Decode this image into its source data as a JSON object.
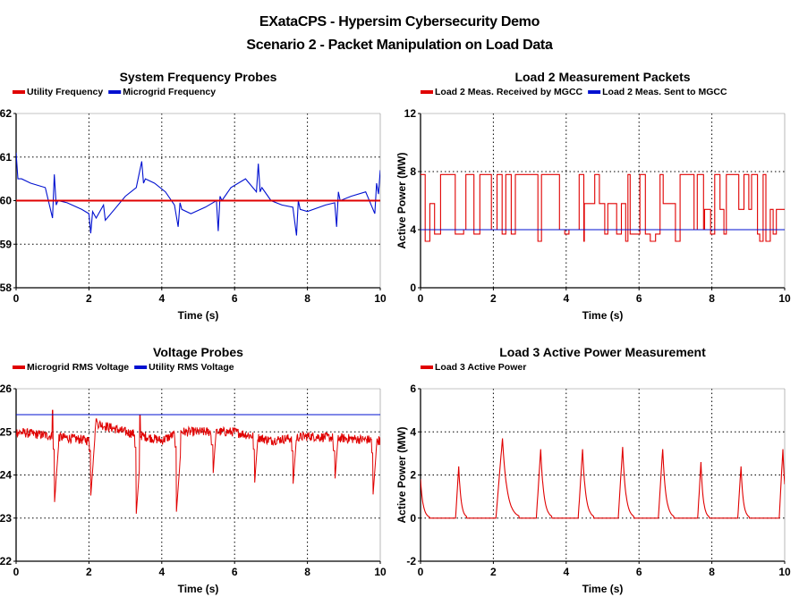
{
  "page": {
    "title": "EXataCPS - Hypersim Cybersecurity Demo",
    "subtitle": "Scenario 2 - Packet Manipulation on Load Data"
  },
  "chart_data": [
    {
      "id": "freq",
      "type": "line",
      "title": "System Frequency Probes",
      "xlabel": "Time (s)",
      "ylabel": "",
      "xlim": [
        0,
        10
      ],
      "ylim": [
        58,
        62
      ],
      "xticks": [
        0,
        2,
        4,
        6,
        8,
        10
      ],
      "yticks": [
        58,
        59,
        60,
        61,
        62
      ],
      "grid": true,
      "legend_position": "top-left",
      "series": [
        {
          "name": "Utility Frequency",
          "color": "#e00000",
          "kind": "flat",
          "x": [
            0,
            10
          ],
          "y": [
            60.0,
            60.0
          ]
        },
        {
          "name": "Microgrid Frequency",
          "color": "#0010d0",
          "kind": "path",
          "x": [
            0,
            0.05,
            0.15,
            0.4,
            0.8,
            1.0,
            1.05,
            1.1,
            1.15,
            1.4,
            1.8,
            2.0,
            2.05,
            2.1,
            2.2,
            2.4,
            2.45,
            2.5,
            2.7,
            3.0,
            3.3,
            3.45,
            3.5,
            3.55,
            3.8,
            4.1,
            4.35,
            4.45,
            4.5,
            4.55,
            4.8,
            5.2,
            5.5,
            5.55,
            5.6,
            5.65,
            5.9,
            6.3,
            6.6,
            6.65,
            6.7,
            6.75,
            7.0,
            7.3,
            7.6,
            7.7,
            7.75,
            7.8,
            8.0,
            8.5,
            8.75,
            8.8,
            8.85,
            8.9,
            9.2,
            9.6,
            9.85,
            9.9,
            9.95,
            10
          ],
          "y": [
            61.1,
            60.5,
            60.5,
            60.4,
            60.3,
            59.6,
            60.6,
            59.9,
            60.0,
            59.95,
            59.8,
            59.7,
            59.25,
            59.75,
            59.6,
            59.9,
            59.55,
            59.6,
            59.8,
            60.1,
            60.3,
            60.9,
            60.4,
            60.5,
            60.4,
            60.2,
            59.9,
            59.4,
            59.95,
            59.8,
            59.7,
            59.85,
            60.0,
            59.3,
            60.1,
            60.0,
            60.3,
            60.5,
            60.2,
            60.85,
            60.2,
            60.3,
            60.0,
            59.9,
            59.85,
            59.2,
            60.0,
            59.8,
            59.75,
            59.9,
            59.95,
            59.4,
            60.2,
            60.0,
            60.1,
            60.2,
            59.7,
            60.4,
            60.15,
            60.7
          ]
        }
      ]
    },
    {
      "id": "load2",
      "type": "line",
      "title": "Load 2 Measurement Packets",
      "xlabel": "Time (s)",
      "ylabel": "Active Power (MW)",
      "xlim": [
        0,
        10
      ],
      "ylim": [
        0,
        12
      ],
      "xticks": [
        0,
        2,
        4,
        6,
        8,
        10
      ],
      "yticks": [
        0,
        4,
        8,
        12
      ],
      "grid": true,
      "legend_position": "top-left",
      "series": [
        {
          "name": "Load 2 Meas. Received by MGCC",
          "color": "#e00000",
          "kind": "switching",
          "levels": [
            7.8,
            5.8,
            4.0,
            3.5,
            3.0
          ],
          "segments": [
            {
              "from": 0.0,
              "to": 0.55,
              "base": 5.8
            },
            {
              "from": 0.55,
              "to": 2.1,
              "base": 4.0
            },
            {
              "from": 2.1,
              "to": 3.5,
              "base": 5.6
            },
            {
              "from": 3.5,
              "to": 4.5,
              "base": 4.0
            },
            {
              "from": 4.5,
              "to": 7.0,
              "base": 5.8
            },
            {
              "from": 7.0,
              "to": 7.8,
              "base": 4.0
            },
            {
              "from": 7.8,
              "to": 10.0,
              "base": 5.4
            }
          ]
        },
        {
          "name": "Load 2 Meas. Sent to MGCC",
          "color": "#0010d0",
          "kind": "flat",
          "x": [
            0,
            10
          ],
          "y": [
            4.0,
            4.0
          ]
        }
      ]
    },
    {
      "id": "volt",
      "type": "line",
      "title": "Voltage Probes",
      "xlabel": "Time (s)",
      "ylabel": "",
      "xlim": [
        0,
        10
      ],
      "ylim": [
        22,
        26
      ],
      "xticks": [
        0,
        2,
        4,
        6,
        8,
        10
      ],
      "yticks": [
        22,
        23,
        24,
        25,
        26
      ],
      "grid": true,
      "legend_position": "top-left",
      "series": [
        {
          "name": "Microgrid RMS Voltage",
          "color": "#e00000",
          "kind": "noisy",
          "base": [
            [
              0,
              25.0
            ],
            [
              1.0,
              24.9
            ],
            [
              2.0,
              24.8
            ],
            [
              2.2,
              25.2
            ],
            [
              3.0,
              25.0
            ],
            [
              4.0,
              24.8
            ],
            [
              4.5,
              25.0
            ],
            [
              5.5,
              25.0
            ],
            [
              6.0,
              25.0
            ],
            [
              7.0,
              24.8
            ],
            [
              8.0,
              24.9
            ],
            [
              9.0,
              24.85
            ],
            [
              10.0,
              24.8
            ]
          ],
          "dips": [
            [
              1.05,
              23.3
            ],
            [
              2.05,
              23.5
            ],
            [
              3.3,
              23.1
            ],
            [
              4.4,
              23.1
            ],
            [
              5.4,
              23.9
            ],
            [
              6.55,
              23.8
            ],
            [
              7.6,
              23.7
            ],
            [
              8.75,
              23.8
            ],
            [
              9.8,
              23.5
            ]
          ],
          "spikes": [
            [
              1.0,
              25.5
            ],
            [
              2.2,
              25.3
            ],
            [
              3.4,
              25.4
            ]
          ]
        },
        {
          "name": "Utility RMS Voltage",
          "color": "#0010d0",
          "kind": "flat",
          "x": [
            0,
            10
          ],
          "y": [
            25.4,
            25.4
          ]
        }
      ]
    },
    {
      "id": "load3",
      "type": "line",
      "title": "Load 3 Active Power Measurement",
      "xlabel": "Time (s)",
      "ylabel": "Active Power (MW)",
      "xlim": [
        0,
        10
      ],
      "ylim": [
        -2,
        6
      ],
      "xticks": [
        0,
        2,
        4,
        6,
        8,
        10
      ],
      "yticks": [
        -2,
        0,
        2,
        4,
        6
      ],
      "grid": true,
      "legend_position": "top-left",
      "series": [
        {
          "name": "Load 3 Active Power",
          "color": "#e00000",
          "kind": "pulses",
          "baseline": 0,
          "pulses": [
            [
              0.0,
              1.8,
              0.25
            ],
            [
              1.05,
              2.4,
              0.22
            ],
            [
              2.25,
              3.7,
              0.45
            ],
            [
              3.3,
              3.2,
              0.3
            ],
            [
              4.45,
              3.2,
              0.3
            ],
            [
              5.55,
              3.3,
              0.3
            ],
            [
              6.65,
              3.2,
              0.3
            ],
            [
              7.7,
              2.6,
              0.22
            ],
            [
              8.8,
              2.4,
              0.22
            ],
            [
              9.95,
              3.2,
              0.25
            ]
          ]
        }
      ]
    }
  ]
}
